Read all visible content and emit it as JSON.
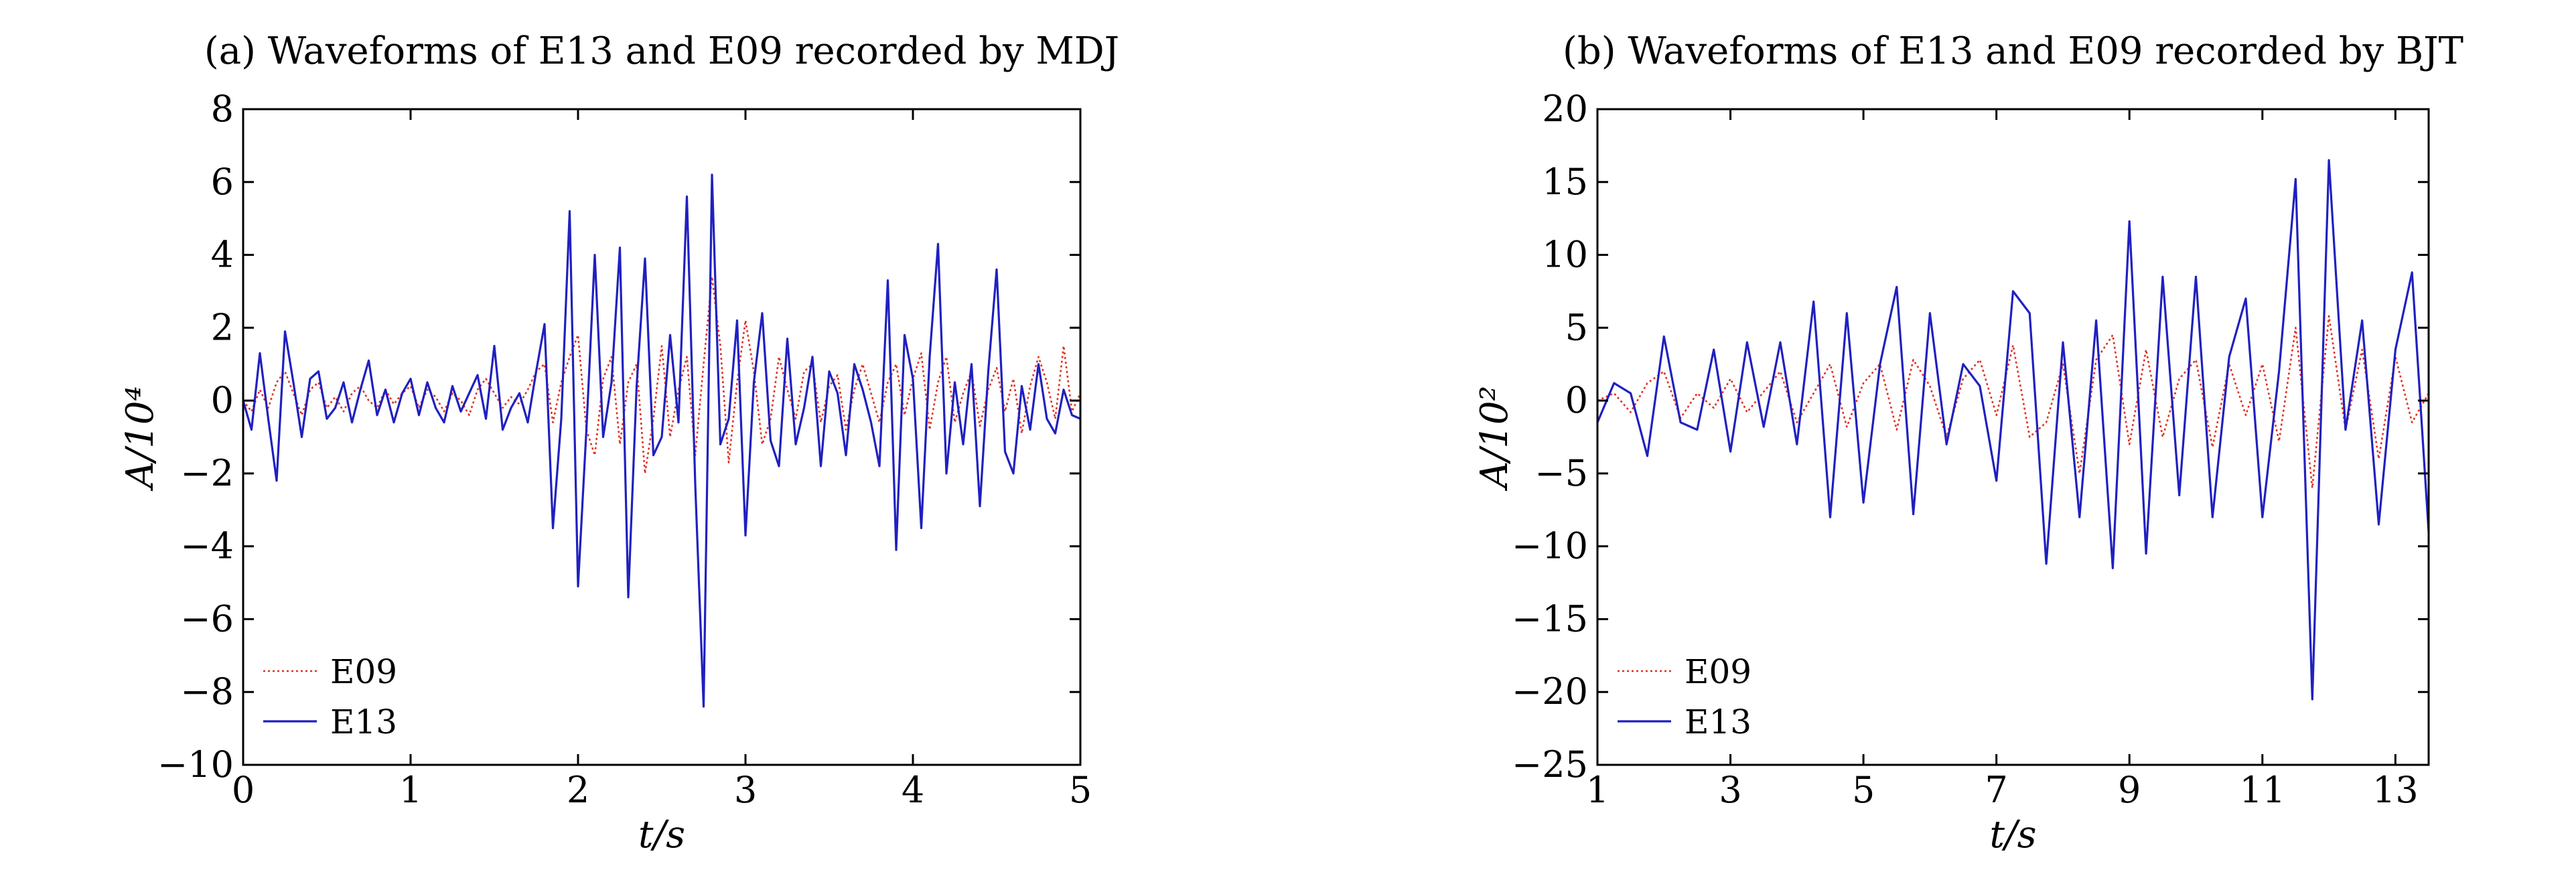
{
  "chart_data": [
    {
      "type": "line",
      "title": "(a) Waveforms of E13 and E09 recorded by MDJ",
      "xlabel": "t/s",
      "ylabel": "A/10⁴",
      "xlim": [
        0,
        5
      ],
      "ylim": [
        -10,
        8
      ],
      "xticks": [
        0,
        1,
        2,
        3,
        4,
        5
      ],
      "xtick_labels": [
        "0",
        "1",
        "2",
        "3",
        "4",
        "5"
      ],
      "yticks": [
        8,
        6,
        4,
        2,
        0,
        -2,
        -4,
        -6,
        -8,
        -10
      ],
      "ytick_labels": [
        "8",
        "6",
        "4",
        "2",
        "0",
        "−2",
        "−4",
        "−6",
        "−8",
        "−10"
      ],
      "grid": false,
      "legend": "lower-left",
      "series": [
        {
          "name": "E09",
          "color": "#e03020",
          "style": "dotted",
          "x": [
            0,
            0.05,
            0.1,
            0.15,
            0.2,
            0.25,
            0.3,
            0.35,
            0.4,
            0.45,
            0.5,
            0.55,
            0.6,
            0.65,
            0.7,
            0.75,
            0.8,
            0.85,
            0.9,
            0.95,
            1.0,
            1.05,
            1.1,
            1.15,
            1.2,
            1.25,
            1.3,
            1.35,
            1.4,
            1.45,
            1.5,
            1.55,
            1.6,
            1.65,
            1.7,
            1.75,
            1.8,
            1.85,
            1.9,
            1.95,
            2.0,
            2.05,
            2.1,
            2.15,
            2.2,
            2.25,
            2.3,
            2.35,
            2.4,
            2.45,
            2.5,
            2.55,
            2.6,
            2.65,
            2.7,
            2.75,
            2.8,
            2.85,
            2.9,
            2.95,
            3.0,
            3.05,
            3.1,
            3.15,
            3.2,
            3.25,
            3.3,
            3.35,
            3.4,
            3.45,
            3.5,
            3.55,
            3.6,
            3.65,
            3.7,
            3.75,
            3.8,
            3.85,
            3.9,
            3.95,
            4.0,
            4.05,
            4.1,
            4.15,
            4.2,
            4.25,
            4.3,
            4.35,
            4.4,
            4.45,
            4.5,
            4.55,
            4.6,
            4.65,
            4.7,
            4.75,
            4.8,
            4.85,
            4.9,
            4.95,
            5.0
          ],
          "y": [
            0,
            -0.3,
            0.3,
            -0.2,
            0.5,
            0.8,
            0.2,
            -0.4,
            0.3,
            0.5,
            -0.2,
            0.1,
            -0.3,
            0.2,
            0.4,
            0,
            -0.2,
            0.3,
            -0.1,
            0.2,
            0.4,
            -0.2,
            0.3,
            0.1,
            -0.3,
            0.2,
            0,
            -0.4,
            0.3,
            0.6,
            0.2,
            -0.2,
            0.1,
            -0.1,
            0.3,
            0.8,
            1.0,
            -0.6,
            0.5,
            1.2,
            1.8,
            -0.8,
            -1.5,
            0.6,
            1.2,
            -1.2,
            0.5,
            1.0,
            -2.0,
            -0.5,
            1.5,
            -1.0,
            0.3,
            1.2,
            -1.5,
            1.0,
            3.4,
            1.5,
            -1.7,
            0.5,
            2.2,
            0.8,
            -1.2,
            -0.5,
            1.2,
            0.3,
            -0.5,
            0.8,
            1.0,
            -0.6,
            0.4,
            0.7,
            -0.8,
            0.3,
            1.0,
            0.2,
            -0.6,
            0.5,
            1.0,
            -0.4,
            0.6,
            1.3,
            -0.8,
            0.5,
            1.2,
            -0.6,
            0.2,
            0.8,
            -0.7,
            0.3,
            0.9,
            -0.3,
            0.6,
            -0.9,
            0.4,
            1.2,
            0.5,
            -0.5,
            1.5,
            -0.3,
            0.2
          ]
        },
        {
          "name": "E13",
          "color": "#2020c0",
          "style": "solid",
          "x": [
            0,
            0.05,
            0.1,
            0.15,
            0.2,
            0.25,
            0.3,
            0.35,
            0.4,
            0.45,
            0.5,
            0.55,
            0.6,
            0.65,
            0.7,
            0.75,
            0.8,
            0.85,
            0.9,
            0.95,
            1.0,
            1.05,
            1.1,
            1.15,
            1.2,
            1.25,
            1.3,
            1.35,
            1.4,
            1.45,
            1.5,
            1.55,
            1.6,
            1.65,
            1.7,
            1.75,
            1.8,
            1.85,
            1.9,
            1.95,
            2.0,
            2.05,
            2.1,
            2.15,
            2.2,
            2.25,
            2.3,
            2.35,
            2.4,
            2.45,
            2.5,
            2.55,
            2.6,
            2.65,
            2.7,
            2.75,
            2.8,
            2.85,
            2.9,
            2.95,
            3.0,
            3.05,
            3.1,
            3.15,
            3.2,
            3.25,
            3.3,
            3.35,
            3.4,
            3.45,
            3.5,
            3.55,
            3.6,
            3.65,
            3.7,
            3.75,
            3.8,
            3.85,
            3.9,
            3.95,
            4.0,
            4.05,
            4.1,
            4.15,
            4.2,
            4.25,
            4.3,
            4.35,
            4.4,
            4.45,
            4.5,
            4.55,
            4.6,
            4.65,
            4.7,
            4.75,
            4.8,
            4.85,
            4.9,
            4.95,
            5.0
          ],
          "y": [
            0,
            -0.8,
            1.3,
            -0.5,
            -2.2,
            1.9,
            0.5,
            -1.0,
            0.6,
            0.8,
            -0.5,
            -0.2,
            0.5,
            -0.6,
            0.3,
            1.1,
            -0.4,
            0.3,
            -0.6,
            0.2,
            0.6,
            -0.4,
            0.5,
            -0.2,
            -0.6,
            0.4,
            -0.3,
            0.2,
            0.7,
            -0.5,
            1.5,
            -0.8,
            -0.2,
            0.2,
            -0.6,
            0.8,
            2.1,
            -3.5,
            -0.5,
            5.2,
            -5.1,
            -0.8,
            4.0,
            -1.0,
            0.5,
            4.2,
            -5.4,
            0.4,
            3.9,
            -1.5,
            -1.0,
            1.8,
            -0.6,
            5.6,
            -2.3,
            -8.4,
            6.2,
            -1.2,
            -0.5,
            2.2,
            -3.7,
            0.5,
            2.4,
            -1.1,
            -1.8,
            1.7,
            -1.2,
            -0.2,
            1.2,
            -1.8,
            0.8,
            0.2,
            -1.5,
            1.0,
            0.3,
            -0.6,
            -1.8,
            3.3,
            -4.1,
            1.8,
            0.6,
            -3.5,
            1.2,
            4.3,
            -2.0,
            0.5,
            -1.2,
            1.0,
            -2.9,
            0.8,
            3.6,
            -1.4,
            -2.0,
            0.4,
            -0.8,
            1.0,
            -0.5,
            -0.9,
            0.3,
            -0.4,
            -0.5
          ]
        }
      ]
    },
    {
      "type": "line",
      "title": "(b) Waveforms of E13 and E09 recorded by BJT",
      "xlabel": "t/s",
      "ylabel": "A/10²",
      "xlim": [
        1,
        13.5
      ],
      "ylim": [
        -25,
        20
      ],
      "xticks": [
        1,
        3,
        5,
        7,
        9,
        11,
        13
      ],
      "xtick_labels": [
        "1",
        "3",
        "5",
        "7",
        "9",
        "11",
        "13"
      ],
      "yticks": [
        20,
        15,
        10,
        5,
        0,
        -5,
        -10,
        -15,
        -20,
        -25
      ],
      "ytick_labels": [
        "20",
        "15",
        "10",
        "5",
        "0",
        "−5",
        "−10",
        "−15",
        "−20",
        "−25"
      ],
      "grid": false,
      "legend": "lower-left",
      "series": [
        {
          "name": "E09",
          "color": "#e03020",
          "style": "dotted",
          "x": [
            1.0,
            1.25,
            1.5,
            1.75,
            2.0,
            2.25,
            2.5,
            2.75,
            3.0,
            3.25,
            3.5,
            3.75,
            4.0,
            4.25,
            4.5,
            4.75,
            5.0,
            5.25,
            5.5,
            5.75,
            6.0,
            6.25,
            6.5,
            6.75,
            7.0,
            7.25,
            7.5,
            7.75,
            8.0,
            8.25,
            8.5,
            8.75,
            9.0,
            9.25,
            9.5,
            9.75,
            10.0,
            10.25,
            10.5,
            10.75,
            11.0,
            11.25,
            11.5,
            11.75,
            12.0,
            12.25,
            12.5,
            12.75,
            13.0,
            13.25,
            13.5
          ],
          "y": [
            0,
            0.5,
            -0.8,
            1.2,
            2.0,
            -1.2,
            0.5,
            -0.5,
            1.5,
            -0.8,
            0.6,
            2.0,
            -1.5,
            0.5,
            2.5,
            -1.8,
            1.2,
            2.5,
            -2.0,
            2.8,
            1.0,
            -2.5,
            1.5,
            2.8,
            -1.0,
            3.8,
            -2.5,
            -1.5,
            2.5,
            -5.0,
            2.8,
            4.5,
            -3.0,
            3.5,
            -2.5,
            1.5,
            2.8,
            -3.2,
            2.5,
            -1.0,
            2.5,
            -2.8,
            5.0,
            -6.0,
            5.8,
            -2.0,
            3.5,
            -4.0,
            3.0,
            -1.5,
            0.5
          ]
        },
        {
          "name": "E13",
          "color": "#2020c0",
          "style": "solid",
          "x": [
            1.0,
            1.25,
            1.5,
            1.75,
            2.0,
            2.25,
            2.5,
            2.75,
            3.0,
            3.25,
            3.5,
            3.75,
            4.0,
            4.25,
            4.5,
            4.75,
            5.0,
            5.25,
            5.5,
            5.75,
            6.0,
            6.25,
            6.5,
            6.75,
            7.0,
            7.25,
            7.5,
            7.75,
            8.0,
            8.25,
            8.5,
            8.75,
            9.0,
            9.25,
            9.5,
            9.75,
            10.0,
            10.25,
            10.5,
            10.75,
            11.0,
            11.25,
            11.5,
            11.75,
            12.0,
            12.25,
            12.5,
            12.75,
            13.0,
            13.25,
            13.5
          ],
          "y": [
            -1.5,
            1.2,
            0.5,
            -3.8,
            4.4,
            -1.5,
            -2.0,
            3.5,
            -3.5,
            4.0,
            -1.8,
            4.0,
            -3.0,
            6.8,
            -8.0,
            6.0,
            -7.0,
            2.5,
            7.8,
            -7.8,
            6.0,
            -3.0,
            2.5,
            1.0,
            -5.5,
            7.5,
            6.0,
            -11.2,
            4.0,
            -8.0,
            5.5,
            -11.5,
            12.3,
            -10.5,
            8.5,
            -6.5,
            8.5,
            -8.0,
            3.0,
            7.0,
            -8.0,
            2.0,
            15.2,
            -20.5,
            16.5,
            -2.0,
            5.5,
            -8.5,
            3.5,
            8.8,
            -9.0
          ]
        }
      ]
    }
  ]
}
